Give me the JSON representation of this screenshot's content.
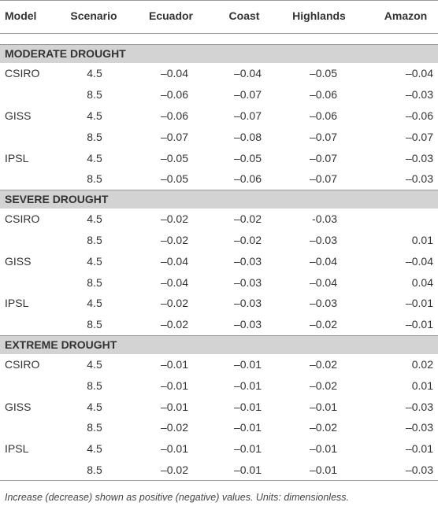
{
  "table": {
    "header": [
      "Model",
      "Scenario",
      "Ecuador",
      "Coast",
      "Highlands",
      "Amazon"
    ],
    "sections": [
      {
        "title": "MODERATE DROUGHT",
        "rows": [
          [
            "CSIRO",
            "4.5",
            "–0.04",
            "–0.04",
            "–0.05",
            "–0.04"
          ],
          [
            null,
            "8.5",
            "–0.06",
            "–0.07",
            "–0.06",
            "–0.03"
          ],
          [
            "GISS",
            "4.5",
            "–0.06",
            "–0.07",
            "–0.06",
            "–0.06"
          ],
          [
            null,
            "8.5",
            "–0.07",
            "–0.08",
            "–0.07",
            "–0.07"
          ],
          [
            "IPSL",
            "4.5",
            "–0.05",
            "–0.05",
            "–0.07",
            "–0.03"
          ],
          [
            null,
            "8.5",
            "–0.05",
            "–0.06",
            "–0.07",
            "–0.03"
          ]
        ]
      },
      {
        "title": "SEVERE DROUGHT",
        "rows": [
          [
            "CSIRO",
            "4.5",
            "–0.02",
            "–0.02",
            "-0.03",
            null
          ],
          [
            null,
            "8.5",
            "–0.02",
            "–0.02",
            "–0.03",
            "0.01"
          ],
          [
            "GISS",
            "4.5",
            "–0.04",
            "–0.03",
            "–0.04",
            "–0.04"
          ],
          [
            null,
            "8.5",
            "–0.04",
            "–0.03",
            "–0.04",
            "0.04"
          ],
          [
            "IPSL",
            "4.5",
            "–0.02",
            "–0.03",
            "–0.03",
            "–0.01"
          ],
          [
            null,
            "8.5",
            "–0.02",
            "–0.03",
            "–0.02",
            "–0.01"
          ]
        ]
      },
      {
        "title": "EXTREME DROUGHT",
        "rows": [
          [
            "CSIRO",
            "4.5",
            "–0.01",
            "–0.01",
            "–0.02",
            "0.02"
          ],
          [
            null,
            "8.5",
            "–0.01",
            "–0.01",
            "–0.02",
            "0.01"
          ],
          [
            "GISS",
            "4.5",
            "–0.01",
            "–0.01",
            "–0.01",
            "–0.03"
          ],
          [
            null,
            "8.5",
            "–0.02",
            "–0.01",
            "–0.02",
            "–0.03"
          ],
          [
            "IPSL",
            "4.5",
            "–0.01",
            "–0.01",
            "–0.01",
            "–0.01"
          ],
          [
            null,
            "8.5",
            "–0.02",
            "–0.01",
            "–0.01",
            "–0.03"
          ]
        ]
      }
    ],
    "footnote": "Increase (decrease) shown as positive (negative) values. Units: dimensionless."
  }
}
